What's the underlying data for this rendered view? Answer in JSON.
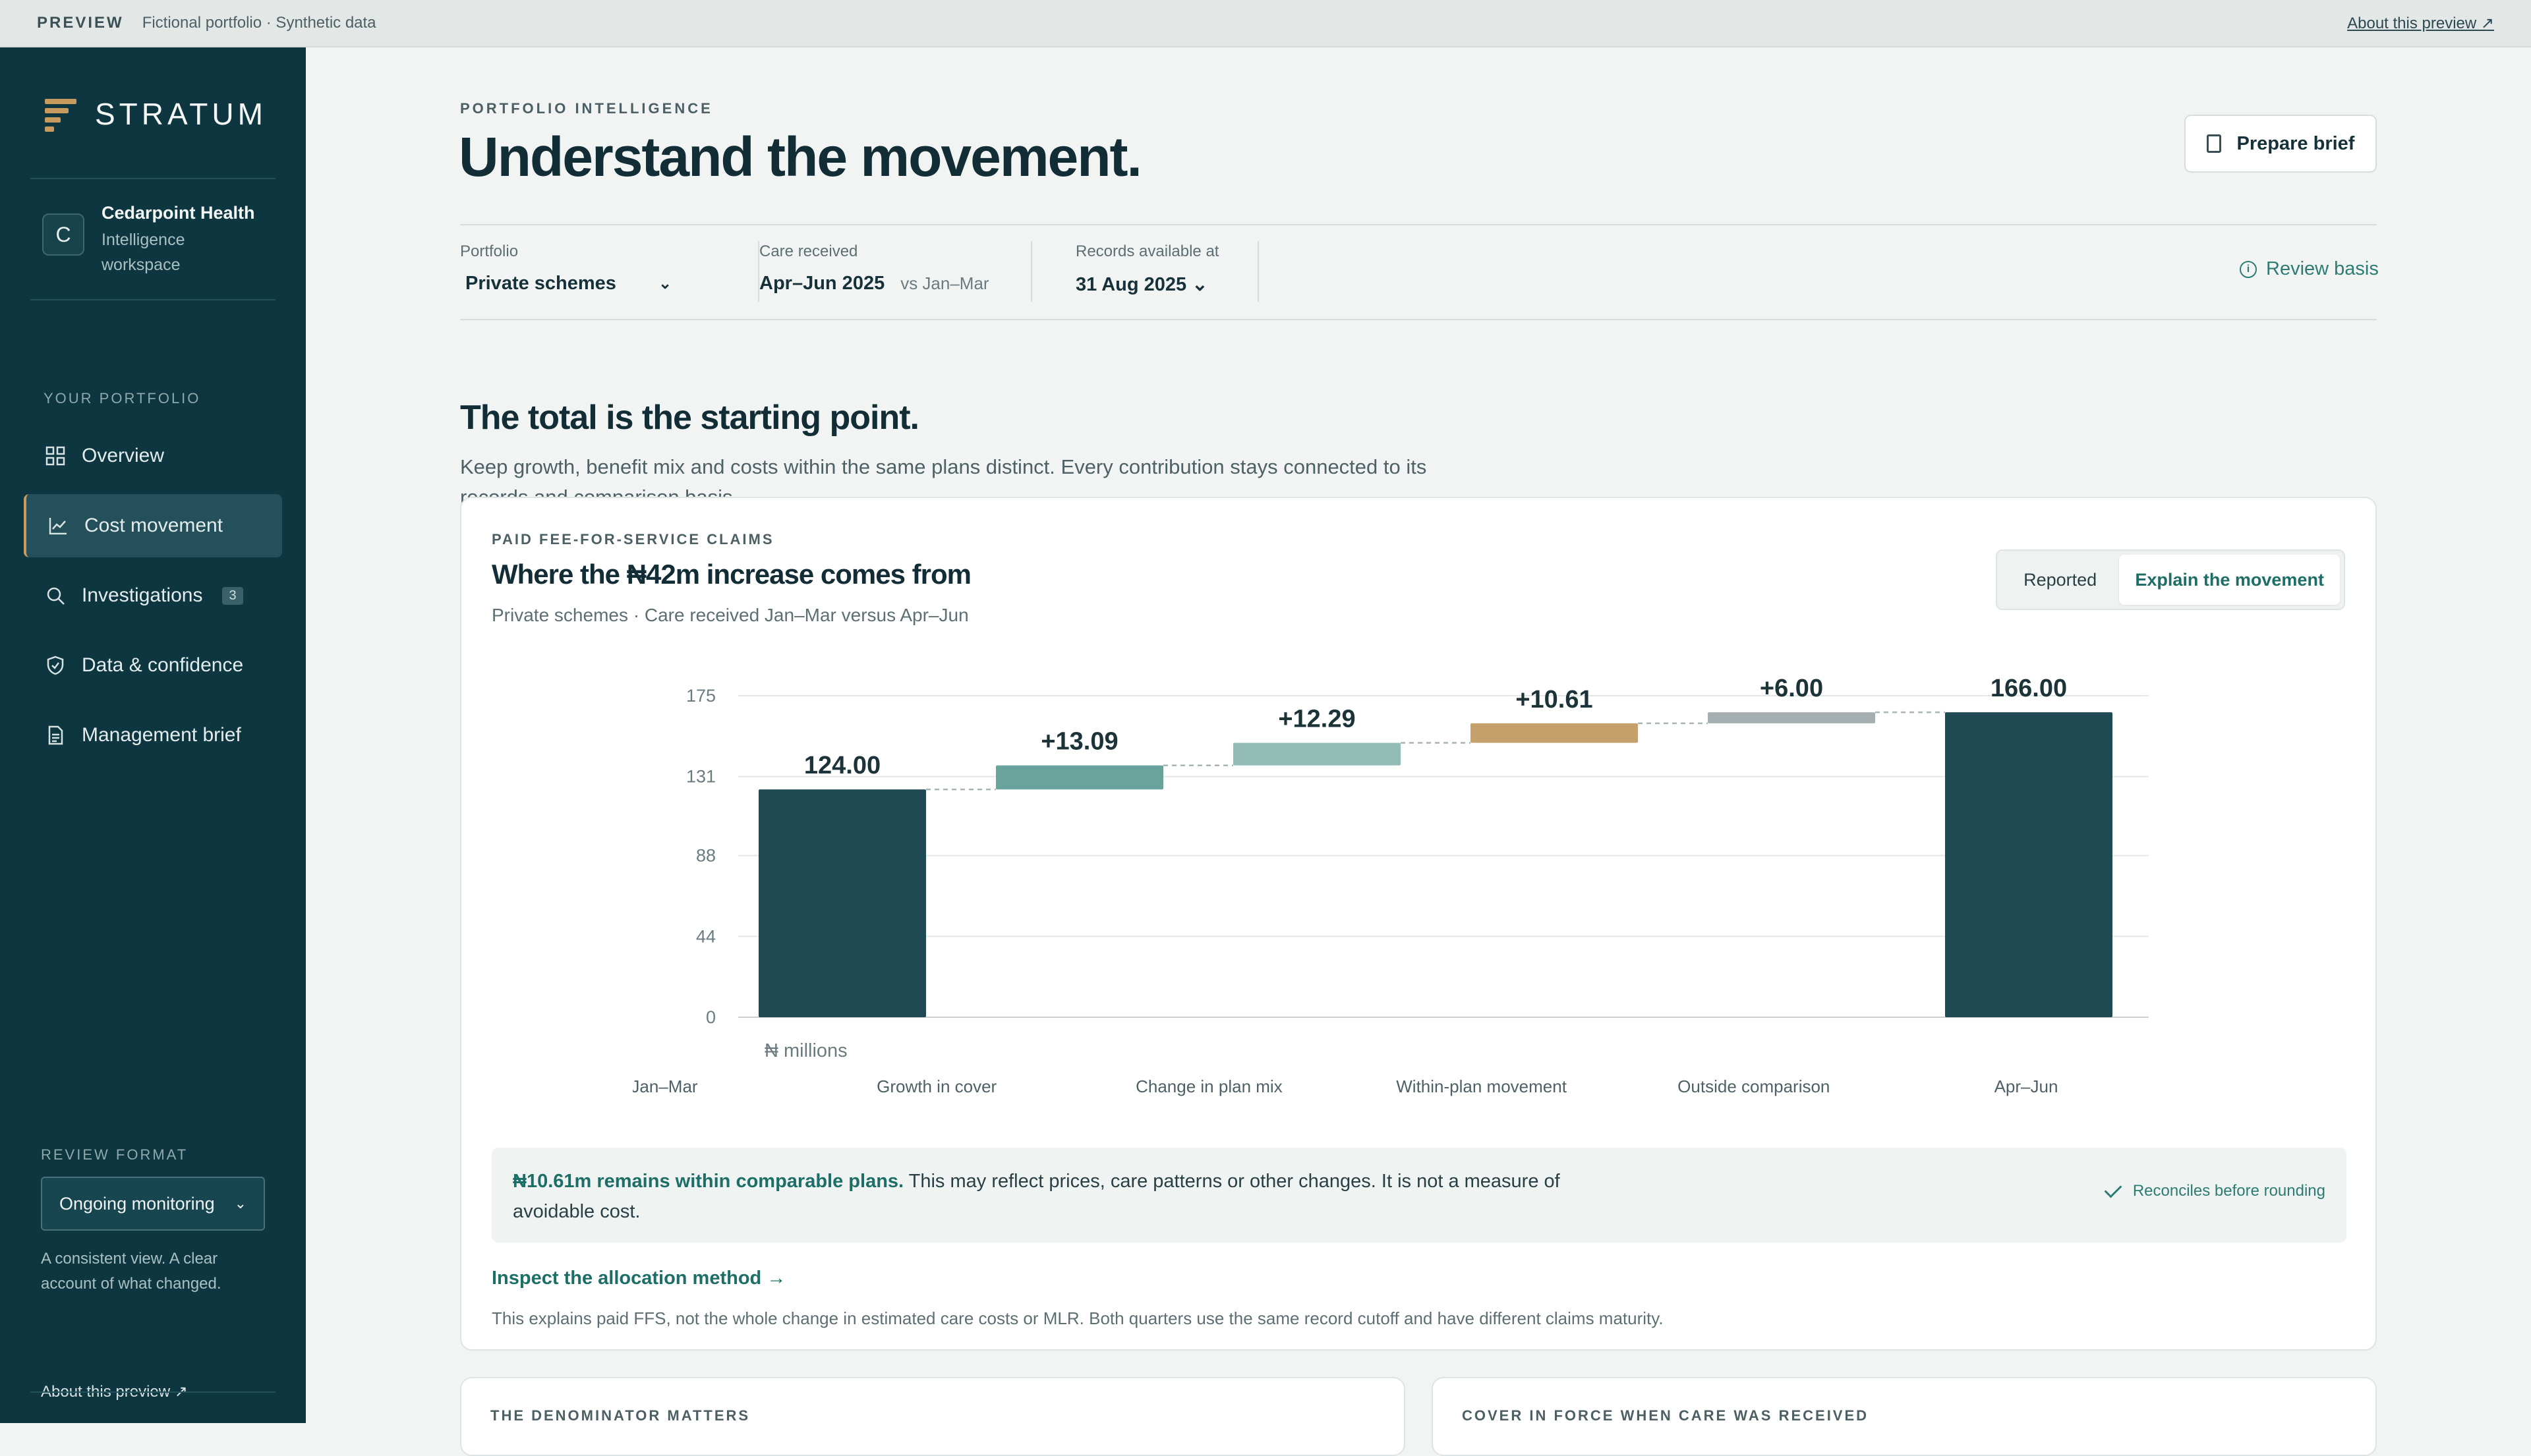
{
  "preview_bar": {
    "tag": "PREVIEW",
    "text": "Fictional portfolio · Synthetic data",
    "about": "About this preview ↗"
  },
  "sidebar": {
    "brand": "STRATUM",
    "org": {
      "initial": "C",
      "name": "Cedarpoint Health",
      "sub": "Intelligence workspace"
    },
    "section_label": "YOUR PORTFOLIO",
    "items": [
      {
        "label": "Overview",
        "icon": "grid-icon"
      },
      {
        "label": "Cost movement",
        "icon": "chart-line-icon",
        "active": true
      },
      {
        "label": "Investigations",
        "icon": "search-icon",
        "badge": "3"
      },
      {
        "label": "Data & confidence",
        "icon": "shield-check-icon"
      },
      {
        "label": "Management brief",
        "icon": "document-icon"
      }
    ],
    "review_label": "REVIEW FORMAT",
    "review_value": "Ongoing monitoring",
    "review_note": "A consistent view. A clear account of what changed.",
    "about": "About this preview ↗"
  },
  "header": {
    "eyebrow": "PORTFOLIO INTELLIGENCE",
    "title": "Understand the movement.",
    "prepare_brief": "Prepare brief"
  },
  "filters": {
    "portfolio_label": "Portfolio",
    "portfolio_value": "Private schemes",
    "care_label": "Care received",
    "care_value": "Apr–Jun 2025",
    "care_compare": "vs Jan–Mar",
    "records_label": "Records available at",
    "records_value": "31 Aug 2025 ⌄",
    "review_basis": "Review basis"
  },
  "section": {
    "title": "The total is the starting point.",
    "description": "Keep growth, benefit mix and costs within the same plans distinct. Every contribution stays connected to its records and comparison basis."
  },
  "card": {
    "eyebrow": "PAID FEE-FOR-SERVICE CLAIMS",
    "title": "Where the ₦42m increase comes from",
    "subtitle": "Private schemes · Care received Jan–Mar versus Apr–Jun",
    "toggle": [
      "Reported",
      "Explain the movement"
    ],
    "explain_bold": "₦10.61m remains within comparable plans.",
    "explain_rest": " This may reflect prices, care patterns or other changes. It is not a measure of avoidable cost.",
    "reconciles": "Reconciles before rounding",
    "inspect": "Inspect the allocation method →",
    "footnote": "This explains paid FFS, not the whole change in estimated care costs or MLR. Both quarters use the same record cutoff and have different claims maturity."
  },
  "bottom_cards": [
    "THE DENOMINATOR MATTERS",
    "COVER IN FORCE WHEN CARE WAS RECEIVED"
  ],
  "chart_data": {
    "type": "bar",
    "subtype": "waterfall",
    "categories": [
      "Jan–Mar",
      "Growth in cover",
      "Change in plan mix",
      "Within-plan movement",
      "Outside comparison",
      "Apr–Jun"
    ],
    "values": [
      124.0,
      13.09,
      12.29,
      10.61,
      6.0,
      166.0
    ],
    "data_labels": [
      "124.00",
      "+13.09",
      "+12.29",
      "+10.61",
      "+6.00",
      "166.00"
    ],
    "kinds": [
      "total",
      "delta",
      "delta",
      "delta",
      "delta",
      "total"
    ],
    "colors": [
      "#1f4a54",
      "#6aa29c",
      "#94bcb7",
      "#c5a06a",
      "#a5aeb1",
      "#1f4a54"
    ],
    "yticks": [
      0,
      44,
      88,
      131,
      175
    ],
    "ylim": [
      0,
      175
    ],
    "unit_label": "₦ millions",
    "grid": true
  }
}
